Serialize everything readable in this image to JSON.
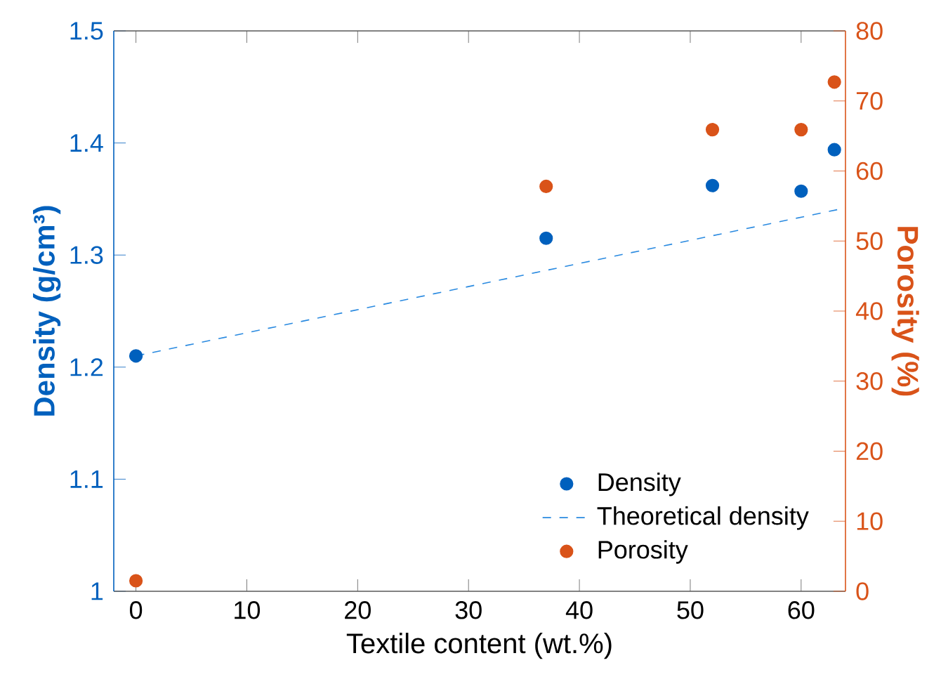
{
  "chart_data": {
    "type": "scatter",
    "xlabel": "Textile content (wt.%)",
    "ylabel": "Density (g/cm³)",
    "y2label": "Porosity (%)",
    "xlim": [
      -2,
      64
    ],
    "xticks": [
      0,
      10,
      20,
      30,
      40,
      50,
      60
    ],
    "ylim": [
      1,
      1.5
    ],
    "yticks": [
      1,
      1.1,
      1.2,
      1.3,
      1.4,
      1.5
    ],
    "y2lim": [
      0,
      80
    ],
    "y2ticks": [
      0,
      10,
      20,
      30,
      40,
      50,
      60,
      70,
      80
    ],
    "x": [
      0,
      37,
      52,
      60,
      63
    ],
    "marker": "circle",
    "legend": "bottom right",
    "grid": false,
    "series": [
      {
        "name": "Density",
        "color": "#0060bd",
        "values": [
          1.21,
          1.315,
          1.362,
          1.357,
          1.394
        ]
      },
      {
        "name": "Theoretical density",
        "type": "line",
        "line_style": "dashed",
        "marker": "none",
        "color": "#2a8ae0",
        "x": [
          0,
          64
        ],
        "values": [
          1.21,
          1.342
        ]
      },
      {
        "name": "Porosity",
        "color": "#d95319",
        "axis": "y2",
        "values": [
          1.5,
          57.8,
          65.9,
          65.9,
          72.7
        ]
      }
    ]
  }
}
